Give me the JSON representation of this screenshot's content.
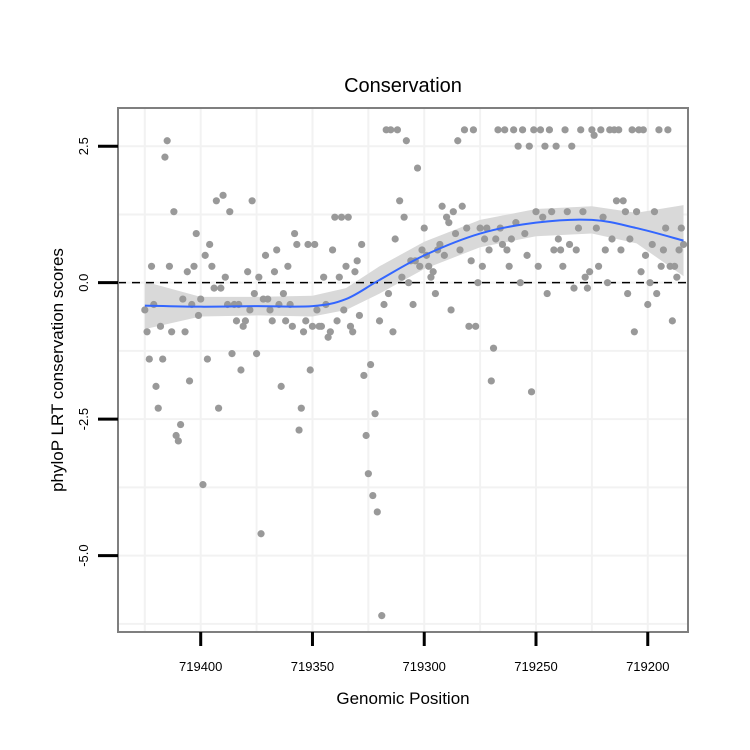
{
  "chart_data": {
    "type": "scatter",
    "title": "Conservation",
    "xlabel": "Genomic Position",
    "ylabel": "phyloP LRT conservation scores",
    "x_reversed": true,
    "xlim": [
      719437,
      719182
    ],
    "ylim": [
      -6.4,
      3.2
    ],
    "x_ticks": [
      719400,
      719350,
      719300,
      719250,
      719200
    ],
    "x_tick_labels": [
      "719400",
      "719350",
      "719300",
      "719250",
      "719200"
    ],
    "y_ticks": [
      2.5,
      0.0,
      -2.5,
      -5.0
    ],
    "y_tick_labels": [
      "2.5",
      "0.0",
      "-2.5",
      "-5.0"
    ],
    "reference_line": {
      "y": 0,
      "style": "dashed"
    },
    "grid": true,
    "colors": {
      "points": "#999999",
      "smooth_line": "#3366FF",
      "confidence_band": "#d9d9d9",
      "panel_border": "#7f7f7f",
      "grid": "#f2f2f2"
    },
    "points": [
      [
        719425,
        -0.5
      ],
      [
        719424,
        -0.9
      ],
      [
        719423,
        -1.4
      ],
      [
        719422,
        0.3
      ],
      [
        719421,
        -0.4
      ],
      [
        719420,
        -1.9
      ],
      [
        719419,
        -2.3
      ],
      [
        719418,
        -0.8
      ],
      [
        719417,
        -1.4
      ],
      [
        719416,
        2.3
      ],
      [
        719415,
        2.6
      ],
      [
        719414,
        0.3
      ],
      [
        719413,
        -0.9
      ],
      [
        719412,
        1.3
      ],
      [
        719411,
        -2.8
      ],
      [
        719410,
        -2.9
      ],
      [
        719409,
        -2.6
      ],
      [
        719408,
        -0.3
      ],
      [
        719407,
        -0.9
      ],
      [
        719406,
        0.2
      ],
      [
        719405,
        -1.8
      ],
      [
        719404,
        -0.4
      ],
      [
        719403,
        0.3
      ],
      [
        719402,
        0.9
      ],
      [
        719401,
        -0.6
      ],
      [
        719400,
        -0.3
      ],
      [
        719399,
        -3.7
      ],
      [
        719398,
        0.5
      ],
      [
        719397,
        -1.4
      ],
      [
        719396,
        0.7
      ],
      [
        719395,
        0.3
      ],
      [
        719394,
        -0.1
      ],
      [
        719393,
        1.5
      ],
      [
        719392,
        -2.3
      ],
      [
        719391,
        -0.1
      ],
      [
        719390,
        1.6
      ],
      [
        719389,
        0.1
      ],
      [
        719388,
        -0.4
      ],
      [
        719387,
        1.3
      ],
      [
        719386,
        -1.3
      ],
      [
        719385,
        -0.4
      ],
      [
        719384,
        -0.7
      ],
      [
        719383,
        -0.4
      ],
      [
        719382,
        -1.6
      ],
      [
        719381,
        -0.8
      ],
      [
        719380,
        -0.7
      ],
      [
        719379,
        0.2
      ],
      [
        719378,
        -0.5
      ],
      [
        719377,
        1.5
      ],
      [
        719376,
        -0.2
      ],
      [
        719375,
        -1.3
      ],
      [
        719374,
        0.1
      ],
      [
        719373,
        -4.6
      ],
      [
        719372,
        -0.3
      ],
      [
        719371,
        0.5
      ],
      [
        719370,
        -0.3
      ],
      [
        719369,
        -0.5
      ],
      [
        719368,
        -0.7
      ],
      [
        719367,
        0.2
      ],
      [
        719366,
        0.6
      ],
      [
        719365,
        -0.4
      ],
      [
        719364,
        -1.9
      ],
      [
        719363,
        -0.2
      ],
      [
        719362,
        -0.7
      ],
      [
        719361,
        0.3
      ],
      [
        719360,
        -0.4
      ],
      [
        719359,
        -0.8
      ],
      [
        719358,
        0.9
      ],
      [
        719357,
        0.7
      ],
      [
        719356,
        -2.7
      ],
      [
        719355,
        -2.3
      ],
      [
        719354,
        -0.9
      ],
      [
        719353,
        -0.7
      ],
      [
        719352,
        0.7
      ],
      [
        719351,
        -1.6
      ],
      [
        719350,
        -0.8
      ],
      [
        719349,
        0.7
      ],
      [
        719348,
        -0.5
      ],
      [
        719347,
        -0.8
      ],
      [
        719346,
        -0.8
      ],
      [
        719345,
        0.1
      ],
      [
        719344,
        -0.4
      ],
      [
        719343,
        -1.0
      ],
      [
        719342,
        -0.9
      ],
      [
        719341,
        0.6
      ],
      [
        719340,
        1.2
      ],
      [
        719339,
        -0.7
      ],
      [
        719338,
        0.1
      ],
      [
        719337,
        1.2
      ],
      [
        719336,
        -0.5
      ],
      [
        719335,
        0.3
      ],
      [
        719334,
        1.2
      ],
      [
        719333,
        -0.8
      ],
      [
        719332,
        -0.9
      ],
      [
        719331,
        0.2
      ],
      [
        719330,
        0.4
      ],
      [
        719329,
        -0.6
      ],
      [
        719328,
        0.7
      ],
      [
        719327,
        -1.7
      ],
      [
        719326,
        -2.8
      ],
      [
        719325,
        -3.5
      ],
      [
        719324,
        -1.5
      ],
      [
        719323,
        -3.9
      ],
      [
        719322,
        -2.4
      ],
      [
        719321,
        -4.2
      ],
      [
        719320,
        -0.7
      ],
      [
        719319,
        -6.1
      ],
      [
        719318,
        -0.4
      ],
      [
        719317,
        2.8
      ],
      [
        719316,
        -0.2
      ],
      [
        719315,
        2.8
      ],
      [
        719314,
        -0.9
      ],
      [
        719313,
        0.8
      ],
      [
        719312,
        2.8
      ],
      [
        719311,
        1.5
      ],
      [
        719310,
        0.1
      ],
      [
        719309,
        1.2
      ],
      [
        719308,
        2.6
      ],
      [
        719307,
        0.0
      ],
      [
        719306,
        0.4
      ],
      [
        719305,
        -0.4
      ],
      [
        719304,
        0.4
      ],
      [
        719303,
        2.1
      ],
      [
        719302,
        0.3
      ],
      [
        719301,
        0.6
      ],
      [
        719300,
        1.0
      ],
      [
        719299,
        0.5
      ],
      [
        719298,
        0.3
      ],
      [
        719297,
        0.1
      ],
      [
        719296,
        0.2
      ],
      [
        719295,
        -0.2
      ],
      [
        719294,
        0.6
      ],
      [
        719293,
        0.7
      ],
      [
        719292,
        1.4
      ],
      [
        719291,
        0.5
      ],
      [
        719290,
        1.2
      ],
      [
        719289,
        1.1
      ],
      [
        719288,
        -0.5
      ],
      [
        719287,
        1.3
      ],
      [
        719286,
        0.9
      ],
      [
        719285,
        2.6
      ],
      [
        719284,
        0.6
      ],
      [
        719283,
        1.4
      ],
      [
        719282,
        2.8
      ],
      [
        719281,
        1.0
      ],
      [
        719280,
        -0.8
      ],
      [
        719279,
        0.4
      ],
      [
        719278,
        2.8
      ],
      [
        719277,
        -0.8
      ],
      [
        719276,
        0.0
      ],
      [
        719275,
        1.0
      ],
      [
        719274,
        0.3
      ],
      [
        719273,
        0.8
      ],
      [
        719272,
        1.0
      ],
      [
        719271,
        0.6
      ],
      [
        719270,
        -1.8
      ],
      [
        719269,
        -1.2
      ],
      [
        719268,
        0.8
      ],
      [
        719267,
        2.8
      ],
      [
        719266,
        1.0
      ],
      [
        719265,
        0.7
      ],
      [
        719264,
        2.8
      ],
      [
        719263,
        0.6
      ],
      [
        719262,
        0.3
      ],
      [
        719261,
        0.8
      ],
      [
        719260,
        2.8
      ],
      [
        719259,
        1.1
      ],
      [
        719258,
        2.5
      ],
      [
        719257,
        0.0
      ],
      [
        719256,
        2.8
      ],
      [
        719255,
        0.9
      ],
      [
        719254,
        0.5
      ],
      [
        719253,
        2.5
      ],
      [
        719252,
        -2.0
      ],
      [
        719251,
        2.8
      ],
      [
        719250,
        1.3
      ],
      [
        719249,
        0.3
      ],
      [
        719248,
        2.8
      ],
      [
        719247,
        1.2
      ],
      [
        719246,
        2.5
      ],
      [
        719245,
        -0.2
      ],
      [
        719244,
        2.8
      ],
      [
        719243,
        1.3
      ],
      [
        719242,
        0.6
      ],
      [
        719241,
        2.5
      ],
      [
        719240,
        0.8
      ],
      [
        719239,
        0.6
      ],
      [
        719238,
        0.3
      ],
      [
        719237,
        2.8
      ],
      [
        719236,
        1.3
      ],
      [
        719235,
        0.7
      ],
      [
        719234,
        2.5
      ],
      [
        719233,
        -0.1
      ],
      [
        719232,
        0.6
      ],
      [
        719231,
        1.0
      ],
      [
        719230,
        2.8
      ],
      [
        719229,
        1.3
      ],
      [
        719228,
        0.1
      ],
      [
        719227,
        -0.1
      ],
      [
        719226,
        0.2
      ],
      [
        719225,
        2.8
      ],
      [
        719224,
        2.7
      ],
      [
        719223,
        1.0
      ],
      [
        719222,
        0.3
      ],
      [
        719221,
        2.8
      ],
      [
        719220,
        1.2
      ],
      [
        719219,
        0.6
      ],
      [
        719218,
        0.0
      ],
      [
        719217,
        2.8
      ],
      [
        719216,
        0.8
      ],
      [
        719215,
        2.8
      ],
      [
        719214,
        1.5
      ],
      [
        719213,
        2.8
      ],
      [
        719212,
        0.6
      ],
      [
        719211,
        1.5
      ],
      [
        719210,
        1.3
      ],
      [
        719209,
        -0.2
      ],
      [
        719208,
        0.8
      ],
      [
        719207,
        2.8
      ],
      [
        719206,
        -0.9
      ],
      [
        719205,
        1.3
      ],
      [
        719204,
        2.8
      ],
      [
        719203,
        0.2
      ],
      [
        719202,
        2.8
      ],
      [
        719201,
        0.5
      ],
      [
        719200,
        -0.4
      ],
      [
        719199,
        0.0
      ],
      [
        719198,
        0.7
      ],
      [
        719197,
        1.3
      ],
      [
        719196,
        -0.2
      ],
      [
        719195,
        2.8
      ],
      [
        719194,
        0.3
      ],
      [
        719193,
        0.6
      ],
      [
        719192,
        1.0
      ],
      [
        719191,
        2.8
      ],
      [
        719190,
        0.3
      ],
      [
        719189,
        -0.7
      ],
      [
        719188,
        0.3
      ],
      [
        719187,
        0.1
      ],
      [
        719186,
        0.6
      ],
      [
        719185,
        1.0
      ],
      [
        719184,
        0.7
      ]
    ],
    "smooth": [
      {
        "x": 719425,
        "y": -0.42,
        "lo": -0.85,
        "hi": 0.02
      },
      {
        "x": 719400,
        "y": -0.44,
        "lo": -0.62,
        "hi": -0.26
      },
      {
        "x": 719375,
        "y": -0.43,
        "lo": -0.6,
        "hi": -0.26
      },
      {
        "x": 719350,
        "y": -0.43,
        "lo": -0.62,
        "hi": -0.24
      },
      {
        "x": 719335,
        "y": -0.3,
        "lo": -0.5,
        "hi": -0.1
      },
      {
        "x": 719320,
        "y": 0.05,
        "lo": -0.2,
        "hi": 0.3
      },
      {
        "x": 719300,
        "y": 0.5,
        "lo": 0.25,
        "hi": 0.75
      },
      {
        "x": 719275,
        "y": 0.9,
        "lo": 0.65,
        "hi": 1.15
      },
      {
        "x": 719250,
        "y": 1.1,
        "lo": 0.85,
        "hi": 1.35
      },
      {
        "x": 719225,
        "y": 1.15,
        "lo": 0.9,
        "hi": 1.4
      },
      {
        "x": 719205,
        "y": 1.0,
        "lo": 0.72,
        "hi": 1.28
      },
      {
        "x": 719184,
        "y": 0.77,
        "lo": 0.12,
        "hi": 1.42
      }
    ]
  }
}
